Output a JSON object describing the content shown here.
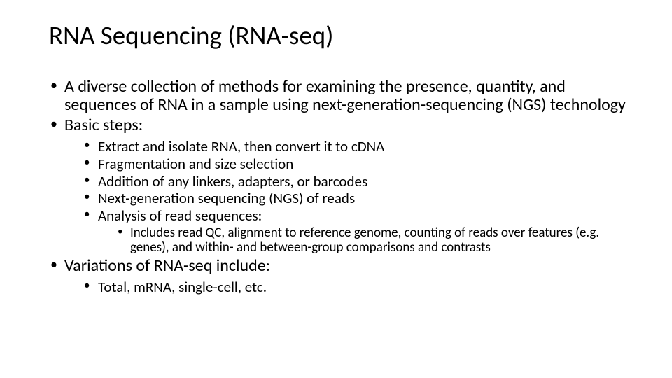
{
  "title": "RNA Sequencing (RNA-seq)",
  "b1": {
    "i0": "A diverse collection of methods for examining the presence, quantity, and sequences of RNA in a sample using next-generation-sequencing (NGS) technology",
    "i1": "Basic steps:",
    "i2": "Variations of RNA-seq include:"
  },
  "b2": {
    "steps": {
      "s0": "Extract and isolate RNA, then convert it to cDNA",
      "s1": "Fragmentation and size selection",
      "s2": "Addition of any linkers, adapters, or barcodes",
      "s3": "Next-generation sequencing (NGS) of reads",
      "s4": "Analysis of read sequences:"
    },
    "variations": {
      "v0": "Total, mRNA, single-cell, etc."
    }
  },
  "b3": {
    "analysis": {
      "a0": "Includes read QC, alignment to reference genome, counting of reads over features (e.g. genes), and within- and between-group comparisons and contrasts"
    }
  },
  "colors": {
    "background": "#ffffff",
    "text": "#000000"
  },
  "fonts": {
    "title_size_pt": 28,
    "l1_size_pt": 18,
    "l2_size_pt": 16,
    "l3_size_pt": 14,
    "family": "Calibri"
  }
}
